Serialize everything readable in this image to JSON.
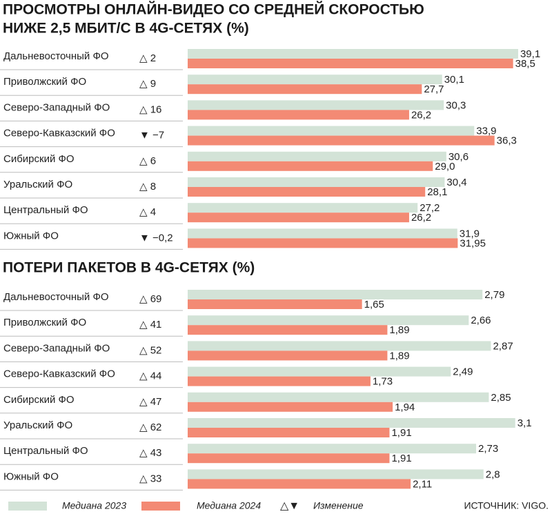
{
  "chart_data": [
    {
      "type": "bar",
      "orientation": "horizontal",
      "title": [
        "ПРОСМОТРЫ ОНЛАЙН-ВИДЕО СО СРЕДНЕЙ СКОРОСТЬЮ",
        "НИЖЕ 2,5 МБИТ/С В 4G-СЕТЯХ (%)"
      ],
      "categories": [
        "Дальневосточный ФО",
        "Приволжский ФО",
        "Северо-Западный ФО",
        "Северо-Кавказский ФО",
        "Сибирский ФО",
        "Уральский ФО",
        "Центральный ФО",
        "Южный ФО"
      ],
      "change_labels": [
        "△ 2",
        "△ 9",
        "△ 16",
        "▼ −7",
        "△ 6",
        "△ 8",
        "△ 4",
        "▼ −0,2"
      ],
      "series": [
        {
          "name": "Медиана 2023",
          "color": "#d3e3d7",
          "values": [
            39.1,
            30.1,
            30.3,
            33.9,
            30.6,
            30.4,
            27.2,
            31.9
          ],
          "value_labels": [
            "39,1",
            "30,1",
            "30,3",
            "33,9",
            "30,6",
            "30,4",
            "27,2",
            "31,9"
          ]
        },
        {
          "name": "Медиана 2024",
          "color": "#f38a74",
          "values": [
            38.5,
            27.7,
            26.2,
            36.3,
            29.0,
            28.1,
            26.2,
            31.95
          ],
          "value_labels": [
            "38,5",
            "27,7",
            "26,2",
            "36,3",
            "29,0",
            "28,1",
            "26,2",
            "31,95"
          ]
        }
      ],
      "xlim": [
        0,
        40
      ]
    },
    {
      "type": "bar",
      "orientation": "horizontal",
      "title": [
        "ПОТЕРИ ПАКЕТОВ В 4G-СЕТЯХ (%)"
      ],
      "categories": [
        "Дальневосточный ФО",
        "Приволжский ФО",
        "Северо-Западный ФО",
        "Северо-Кавказский ФО",
        "Сибирский ФО",
        "Уральский ФО",
        "Центральный ФО",
        "Южный ФО"
      ],
      "change_labels": [
        "△ 69",
        "△ 41",
        "△ 52",
        "△ 44",
        "△ 47",
        "△ 62",
        "△ 43",
        "△ 33"
      ],
      "series": [
        {
          "name": "Медиана 2023",
          "color": "#d3e3d7",
          "values": [
            2.79,
            2.66,
            2.87,
            2.49,
            2.85,
            3.1,
            2.73,
            2.8
          ],
          "value_labels": [
            "2,79",
            "2,66",
            "2,87",
            "2,49",
            "2,85",
            "3,1",
            "2,73",
            "2,8"
          ]
        },
        {
          "name": "Медиана 2024",
          "color": "#f38a74",
          "values": [
            1.65,
            1.89,
            1.89,
            1.73,
            1.94,
            1.91,
            1.91,
            2.11
          ],
          "value_labels": [
            "1,65",
            "1,89",
            "1,89",
            "1,73",
            "1,94",
            "1,91",
            "1,91",
            "2,11"
          ]
        }
      ],
      "xlim": [
        0,
        3.2
      ]
    }
  ],
  "legend": {
    "change_symbol": "△▼",
    "change_label": "Изменение"
  },
  "source": "ИСТОЧНИК: VIGO."
}
